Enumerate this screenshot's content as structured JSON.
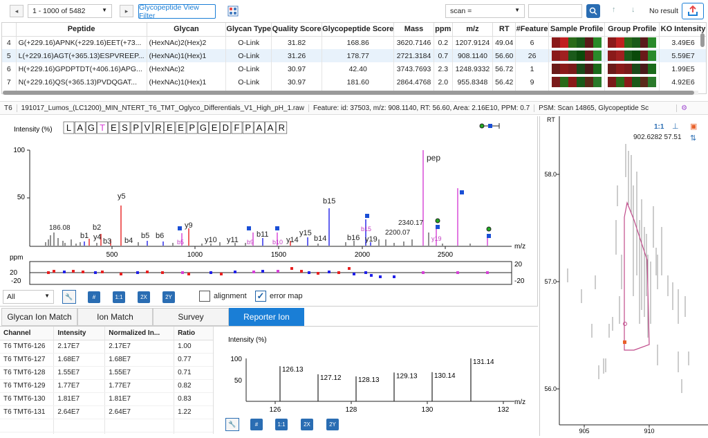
{
  "toolbar": {
    "range": "1 - 1000 of 5482",
    "filter_button": "Glycopeptide View Filter",
    "scan_select": "scan =",
    "search_value": "",
    "no_result": "No result"
  },
  "table": {
    "headers": [
      "",
      "Peptide",
      "Glycan",
      "Glycan Type",
      "Quality Score",
      "Glycopeptide Score",
      "Mass",
      "ppm",
      "m/z",
      "RT",
      "#Feature",
      "Sample Profile",
      "Group Profile",
      "KO Intensity"
    ],
    "rows": [
      {
        "idx": "4",
        "peptide": "G(+229.16)APNK(+229.16)EET(+73...",
        "glycan": "(HexNAc)2(Hex)2",
        "type": "O-Link",
        "quality": "31.82",
        "gp_score": "168.86",
        "mass": "3620.7146",
        "ppm": "0.2",
        "mz": "1207.9124",
        "rt": "49.04",
        "feature": "6",
        "ko": "3.49E6"
      },
      {
        "idx": "5",
        "peptide": "L(+229.16)AGT(+365.13)ESPVREEP...",
        "glycan": "(HexNAc)1(Hex)1",
        "type": "O-Link",
        "quality": "31.26",
        "gp_score": "178.77",
        "mass": "2721.3184",
        "ppm": "0.7",
        "mz": "908.1140",
        "rt": "56.60",
        "feature": "26",
        "ko": "5.59E7"
      },
      {
        "idx": "6",
        "peptide": "H(+229.16)GPDPTDT(+406.16)APG...",
        "glycan": "(HexNAc)2",
        "type": "O-Link",
        "quality": "30.97",
        "gp_score": "42.40",
        "mass": "3743.7693",
        "ppm": "2.3",
        "mz": "1248.9332",
        "rt": "56.72",
        "feature": "1",
        "ko": "1.99E5"
      },
      {
        "idx": "7",
        "peptide": "N(+229.16)QS(+365.13)PVDQGAT...",
        "glycan": "(HexNAc)1(Hex)1",
        "type": "O-Link",
        "quality": "30.97",
        "gp_score": "181.60",
        "mass": "2864.4768",
        "ppm": "2.0",
        "mz": "955.8348",
        "rt": "56.42",
        "feature": "9",
        "ko": "4.92E6"
      }
    ]
  },
  "breadcrumb": {
    "sample": "T6",
    "file": "191017_Lumos_(LC1200)_MIN_NTERT_T6_TMT_Oglyco_Differentials_V1_High_pH_1.raw",
    "feature": "Feature: id: 37503, m/z: 908.1140, RT: 56.60, Area: 2.16E10, PPM: 0.7",
    "psm": "PSM: Scan 14865, Glycopeptide Sc"
  },
  "spectrum": {
    "ylabel": "Intensity (%)",
    "xlabel": "m/z",
    "sequence": [
      "L",
      "A",
      "G",
      "T",
      "E",
      "S",
      "P",
      "V",
      "R",
      "E",
      "E",
      "P",
      "G",
      "E",
      "D",
      "F",
      "P",
      "A",
      "A",
      "R"
    ],
    "ppm_label": "ppm",
    "alignment": "alignment",
    "error_map": "error map",
    "filter": "All",
    "yticks": [
      "100",
      "50"
    ],
    "xticks": [
      "500",
      "1000",
      "1500",
      "2000",
      "2500"
    ],
    "ppm_ticks": [
      "20",
      "0",
      "-20"
    ],
    "ppm_right": [
      "20",
      "-20"
    ],
    "labels": {
      "pep": "pep",
      "y5": "y5",
      "b15": "b15",
      "y9": "y9",
      "b2": "b2",
      "y4": "y4",
      "b1": "b1",
      "b3": "b3",
      "b4": "b4",
      "b5": "b5",
      "b6": "b6",
      "y10": "y10",
      "y11": "y11",
      "b11": "b11",
      "y14": "y14",
      "y15": "y15",
      "b14": "b14",
      "b16": "b16",
      "y19": "y19",
      "m18608": "186.08",
      "m234017": "2340.17",
      "m220007": "2200.07",
      "b5m": "b5",
      "b9m": "b9",
      "b10m": "b10",
      "b15m": "b15",
      "y19m": "y19"
    }
  },
  "tabs": [
    "Glycan Ion Match",
    "Ion Match",
    "Survey",
    "Reporter Ion"
  ],
  "reporter": {
    "headers": [
      "Channel",
      "Intensity",
      "Normalized In...",
      "Ratio"
    ],
    "rows": [
      [
        "T6 TMT6-126",
        "2.17E7",
        "2.17E7",
        "1.00"
      ],
      [
        "T6 TMT6-127",
        "1.68E7",
        "1.68E7",
        "0.77"
      ],
      [
        "T6 TMT6-128",
        "1.55E7",
        "1.55E7",
        "0.71"
      ],
      [
        "T6 TMT6-129",
        "1.77E7",
        "1.77E7",
        "0.82"
      ],
      [
        "T6 TMT6-130",
        "1.81E7",
        "1.81E7",
        "0.83"
      ],
      [
        "T6 TMT6-131",
        "2.64E7",
        "2.64E7",
        "1.22"
      ]
    ],
    "ylabel": "Intensity (%)",
    "xlabel": "m/z",
    "yticks": [
      "100",
      "50"
    ],
    "xticks": [
      "126",
      "128",
      "130",
      "132"
    ],
    "peaks": [
      "126.13",
      "127.12",
      "128.13",
      "129.13",
      "130.14",
      "131.14"
    ]
  },
  "rt_panel": {
    "rt_label": "RT",
    "yticks": [
      "58.0",
      "57.0",
      "56.0"
    ],
    "xticks": [
      "905",
      "910"
    ],
    "zoom": "1:1",
    "coord": "902.6282 57.51"
  },
  "buttons": {
    "hash": "#",
    "one": "1:1",
    "twox": "2X",
    "twoy": "2Y"
  },
  "colors": {
    "accent": "#1a7ed6",
    "magenta": "#d63fd6",
    "red": "#e82020",
    "blue": "#2020e8"
  }
}
